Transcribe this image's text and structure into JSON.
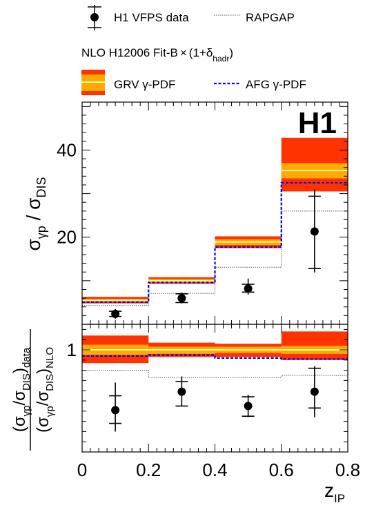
{
  "chart_data": [
    {
      "type": "step-histogram",
      "ylabel": "σγp / σDIS",
      "logo": "H1",
      "xbins": [
        0,
        0.2,
        0.4,
        0.6,
        0.8
      ],
      "xlim": [
        0,
        0.8
      ],
      "ylim": [
        0,
        51
      ],
      "yticks": [
        20,
        40
      ],
      "series": [
        {
          "name": "H1 VFPS data",
          "x": [
            0.1,
            0.3,
            0.5,
            0.7
          ],
          "y": [
            2.4,
            6.0,
            8.2,
            21.3
          ],
          "err_inner_lo": [
            1.8,
            5.0,
            7.4,
            12.8
          ],
          "err_inner_hi": [
            3.0,
            7.0,
            9.2,
            29.4
          ],
          "err_total_lo": [
            1.3,
            4.8,
            6.8,
            11.9
          ],
          "err_total_hi": [
            3.5,
            7.3,
            10.5,
            31.0
          ]
        },
        {
          "name": "RAPGAP",
          "values": [
            4.3,
            7.1,
            13.1,
            26.0
          ]
        },
        {
          "name": "GRV γ-PDF",
          "values": [
            5.5,
            10.0,
            18.9,
            35.3
          ],
          "inner_band_lo": [
            5.2,
            9.6,
            18.2,
            33.5
          ],
          "inner_band_hi": [
            5.8,
            10.4,
            19.5,
            37.0
          ],
          "outer_band_lo": [
            4.8,
            9.3,
            17.5,
            30.5
          ],
          "outer_band_hi": [
            6.3,
            10.8,
            20.2,
            42.8
          ]
        },
        {
          "name": "AFG γ-PDF",
          "values": [
            5.1,
            9.6,
            17.7,
            32.5
          ]
        }
      ]
    },
    {
      "type": "step-histogram",
      "ylabel_top": "(σγp/σDIS)data",
      "ylabel_bottom": "(σγp/σDIS)NLO",
      "xlabel": "zIP",
      "xlim": [
        0,
        0.8
      ],
      "ylim": [
        0,
        1.25
      ],
      "yticks": [
        1
      ],
      "xticks": [
        "0",
        "0.2",
        "0.4",
        "0.6",
        "0.8"
      ],
      "series": [
        {
          "name": "H1 VFPS data",
          "x": [
            0.1,
            0.3,
            0.5,
            0.7
          ],
          "y": [
            0.41,
            0.59,
            0.45,
            0.59
          ],
          "err_inner_lo": [
            0.28,
            0.45,
            0.35,
            0.43
          ],
          "err_inner_hi": [
            0.55,
            0.69,
            0.54,
            0.82
          ],
          "err_total_lo": [
            0.2,
            0.45,
            0.34,
            0.34
          ],
          "err_total_hi": [
            0.68,
            0.74,
            0.56,
            0.84
          ]
        },
        {
          "name": "RAPGAP",
          "values": [
            0.8,
            0.73,
            0.73,
            0.75
          ]
        },
        {
          "name": "GRV γ-PDF",
          "values": [
            1.0,
            1.0,
            1.0,
            1.0
          ],
          "inner_band_lo": [
            0.95,
            0.96,
            0.97,
            0.96
          ],
          "inner_band_hi": [
            1.05,
            1.03,
            1.03,
            1.04
          ],
          "outer_band_lo": [
            0.87,
            0.93,
            0.93,
            0.9
          ],
          "outer_band_hi": [
            1.14,
            1.07,
            1.06,
            1.18
          ]
        },
        {
          "name": "AFG γ-PDF",
          "values": [
            0.94,
            0.95,
            0.92,
            0.91
          ]
        }
      ]
    }
  ],
  "legend": {
    "data_label": "H1 VFPS data",
    "rapgap_label": "RAPGAP",
    "nlo_label": "NLO H12006 Fit-B × (1+δhadr)",
    "grv_label": "GRV γ-PDF",
    "afg_label": "AFG γ-PDF"
  },
  "colors": {
    "outer_band": "#ff3300",
    "inner_band": "#ffaa00",
    "central": "#ffff99",
    "afg": "#0000ee",
    "rapgap": "#555555",
    "axis": "#000000"
  }
}
